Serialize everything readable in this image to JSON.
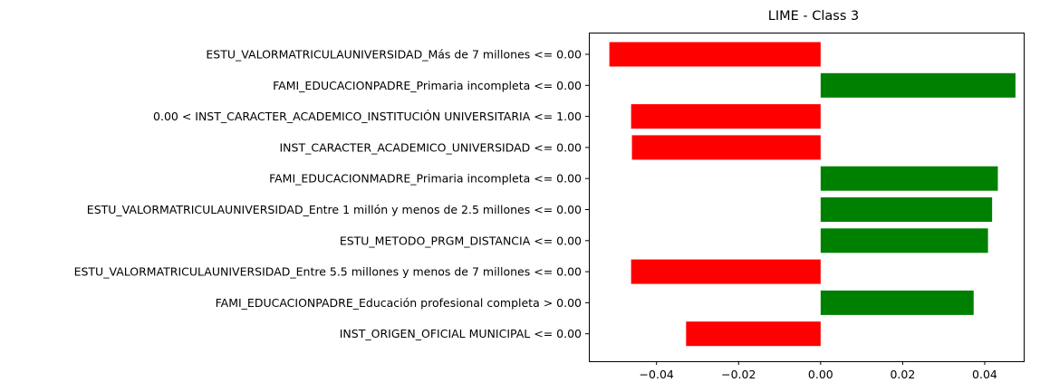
{
  "chart_data": {
    "type": "bar",
    "orientation": "horizontal",
    "title": "LIME - Class 3",
    "xlabel": "",
    "ylabel": "",
    "xlim": [
      -0.0565,
      0.0495
    ],
    "xticks": [
      -0.04,
      -0.02,
      0.0,
      0.02,
      0.04
    ],
    "xtick_labels": [
      "−0.04",
      "−0.02",
      "0.00",
      "0.02",
      "0.04"
    ],
    "grid": false,
    "positive_color": "#008000",
    "negative_color": "#ff0000",
    "categories": [
      "ESTU_VALORMATRICULAUNIVERSIDAD_Más de 7 millones <= 0.00",
      "FAMI_EDUCACIONPADRE_Primaria incompleta <= 0.00",
      "0.00 < INST_CARACTER_ACADEMICO_INSTITUCIÓN UNIVERSITARIA <= 1.00",
      "INST_CARACTER_ACADEMICO_UNIVERSIDAD <= 0.00",
      "FAMI_EDUCACIONMADRE_Primaria incompleta <= 0.00",
      "ESTU_VALORMATRICULAUNIVERSIDAD_Entre 1 millón y menos de 2.5 millones <= 0.00",
      "ESTU_METODO_PRGM_DISTANCIA <= 0.00",
      "ESTU_VALORMATRICULAUNIVERSIDAD_Entre 5.5 millones y menos de 7 millones <= 0.00",
      "FAMI_EDUCACIONPADRE_Educación profesional completa > 0.00",
      "INST_ORIGEN_OFICIAL MUNICIPAL <= 0.00"
    ],
    "values": [
      -0.0515,
      0.0475,
      -0.0462,
      -0.046,
      0.0432,
      0.0418,
      0.0408,
      -0.0462,
      0.0373,
      -0.0328
    ]
  }
}
